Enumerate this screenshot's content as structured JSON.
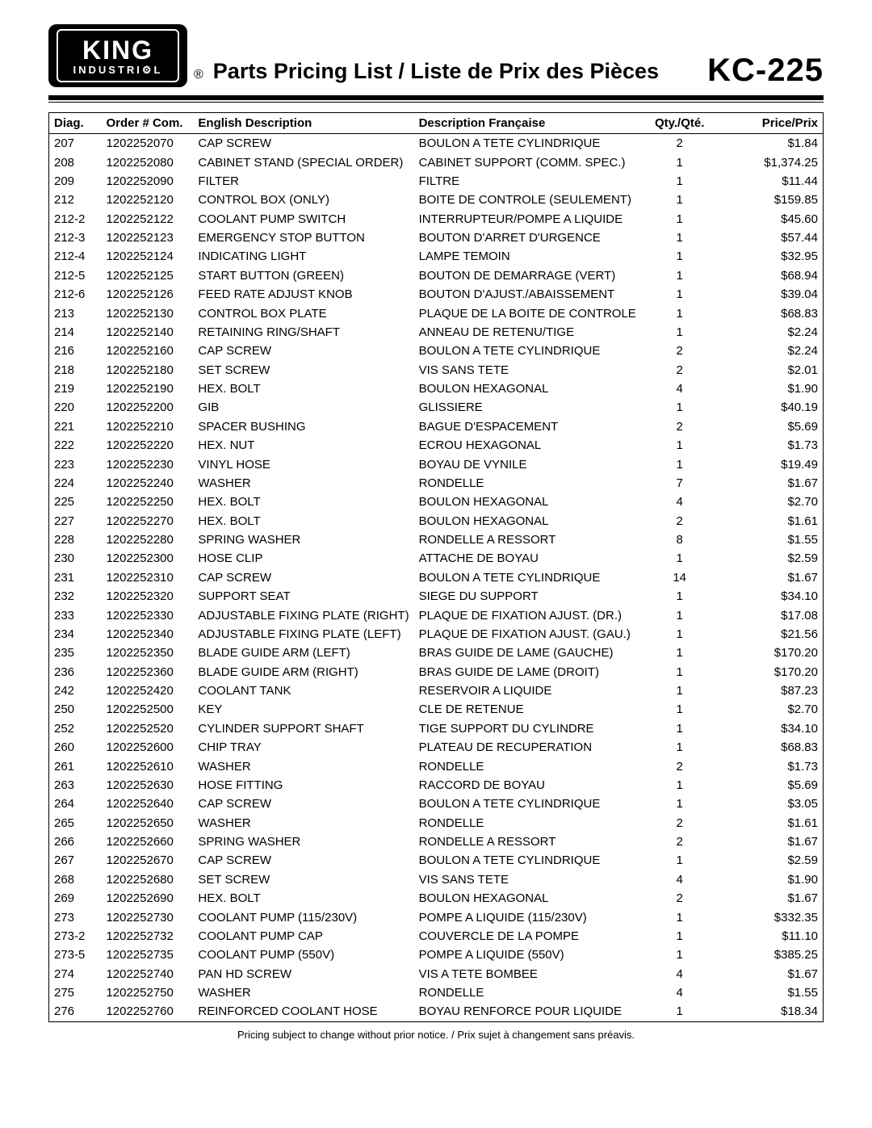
{
  "brand_logo": {
    "line1": "KING",
    "line2": "INDUSTRI",
    "gear": "⚙",
    "line2b": "L"
  },
  "registered": "®",
  "title": "Parts Pricing List / Liste de Prix des Pièces",
  "model": "KC-225",
  "columns": {
    "diag": "Diag.",
    "order": "Order # Com.",
    "en": "English Description",
    "fr": "Description Française",
    "qty": "Qty./Qté.",
    "price": "Price/Prix"
  },
  "rows": [
    {
      "diag": "207",
      "order": "1202252070",
      "en": "CAP SCREW",
      "fr": "BOULON A TETE CYLINDRIQUE",
      "qty": "2",
      "price": "$1.84"
    },
    {
      "diag": "208",
      "order": "1202252080",
      "en": "CABINET STAND (SPECIAL ORDER)",
      "fr": "CABINET SUPPORT (COMM. SPEC.)",
      "qty": "1",
      "price": "$1,374.25"
    },
    {
      "diag": "209",
      "order": "1202252090",
      "en": "FILTER",
      "fr": "FILTRE",
      "qty": "1",
      "price": "$11.44"
    },
    {
      "diag": "212",
      "order": "1202252120",
      "en": "CONTROL BOX (ONLY)",
      "fr": "BOITE DE CONTROLE (SEULEMENT)",
      "qty": "1",
      "price": "$159.85"
    },
    {
      "diag": "212-2",
      "order": "1202252122",
      "en": "COOLANT PUMP SWITCH",
      "fr": "INTERRUPTEUR/POMPE A LIQUIDE",
      "qty": "1",
      "price": "$45.60"
    },
    {
      "diag": "212-3",
      "order": "1202252123",
      "en": "EMERGENCY STOP BUTTON",
      "fr": "BOUTON D'ARRET D'URGENCE",
      "qty": "1",
      "price": "$57.44"
    },
    {
      "diag": "212-4",
      "order": "1202252124",
      "en": "INDICATING LIGHT",
      "fr": "LAMPE TEMOIN",
      "qty": "1",
      "price": "$32.95"
    },
    {
      "diag": "212-5",
      "order": "1202252125",
      "en": "START BUTTON (GREEN)",
      "fr": "BOUTON DE DEMARRAGE (VERT)",
      "qty": "1",
      "price": "$68.94"
    },
    {
      "diag": "212-6",
      "order": "1202252126",
      "en": "FEED RATE ADJUST KNOB",
      "fr": "BOUTON D'AJUST./ABAISSEMENT",
      "qty": "1",
      "price": "$39.04"
    },
    {
      "diag": "213",
      "order": "1202252130",
      "en": "CONTROL BOX PLATE",
      "fr": "PLAQUE DE LA BOITE DE CONTROLE",
      "qty": "1",
      "price": "$68.83"
    },
    {
      "diag": "214",
      "order": "1202252140",
      "en": "RETAINING RING/SHAFT",
      "fr": "ANNEAU DE RETENU/TIGE",
      "qty": "1",
      "price": "$2.24"
    },
    {
      "diag": "216",
      "order": "1202252160",
      "en": "CAP SCREW",
      "fr": "BOULON A TETE CYLINDRIQUE",
      "qty": "2",
      "price": "$2.24"
    },
    {
      "diag": "218",
      "order": "1202252180",
      "en": "SET SCREW",
      "fr": "VIS SANS TETE",
      "qty": "2",
      "price": "$2.01"
    },
    {
      "diag": "219",
      "order": "1202252190",
      "en": "HEX. BOLT",
      "fr": "BOULON HEXAGONAL",
      "qty": "4",
      "price": "$1.90"
    },
    {
      "diag": "220",
      "order": "1202252200",
      "en": "GIB",
      "fr": "GLISSIERE",
      "qty": "1",
      "price": "$40.19"
    },
    {
      "diag": "221",
      "order": "1202252210",
      "en": "SPACER BUSHING",
      "fr": "BAGUE D'ESPACEMENT",
      "qty": "2",
      "price": "$5.69"
    },
    {
      "diag": "222",
      "order": "1202252220",
      "en": "HEX. NUT",
      "fr": "ECROU HEXAGONAL",
      "qty": "1",
      "price": "$1.73"
    },
    {
      "diag": "223",
      "order": "1202252230",
      "en": "VINYL HOSE",
      "fr": "BOYAU DE VYNILE",
      "qty": "1",
      "price": "$19.49"
    },
    {
      "diag": "224",
      "order": "1202252240",
      "en": "WASHER",
      "fr": "RONDELLE",
      "qty": "7",
      "price": "$1.67"
    },
    {
      "diag": "225",
      "order": "1202252250",
      "en": "HEX. BOLT",
      "fr": "BOULON HEXAGONAL",
      "qty": "4",
      "price": "$2.70"
    },
    {
      "diag": "227",
      "order": "1202252270",
      "en": "HEX. BOLT",
      "fr": "BOULON HEXAGONAL",
      "qty": "2",
      "price": "$1.61"
    },
    {
      "diag": "228",
      "order": "1202252280",
      "en": "SPRING WASHER",
      "fr": "RONDELLE A RESSORT",
      "qty": "8",
      "price": "$1.55"
    },
    {
      "diag": "230",
      "order": "1202252300",
      "en": "HOSE CLIP",
      "fr": "ATTACHE DE BOYAU",
      "qty": "1",
      "price": "$2.59"
    },
    {
      "diag": "231",
      "order": "1202252310",
      "en": "CAP SCREW",
      "fr": "BOULON A TETE CYLINDRIQUE",
      "qty": "14",
      "price": "$1.67"
    },
    {
      "diag": "232",
      "order": "1202252320",
      "en": "SUPPORT SEAT",
      "fr": "SIEGE DU SUPPORT",
      "qty": "1",
      "price": "$34.10"
    },
    {
      "diag": "233",
      "order": "1202252330",
      "en": "ADJUSTABLE FIXING PLATE (RIGHT)",
      "fr": "PLAQUE DE FIXATION AJUST. (DR.)",
      "qty": "1",
      "price": "$17.08"
    },
    {
      "diag": "234",
      "order": "1202252340",
      "en": "ADJUSTABLE FIXING PLATE (LEFT)",
      "fr": "PLAQUE DE FIXATION AJUST. (GAU.)",
      "qty": "1",
      "price": "$21.56"
    },
    {
      "diag": "235",
      "order": "1202252350",
      "en": "BLADE GUIDE ARM (LEFT)",
      "fr": "BRAS GUIDE DE LAME (GAUCHE)",
      "qty": "1",
      "price": "$170.20"
    },
    {
      "diag": "236",
      "order": "1202252360",
      "en": "BLADE GUIDE ARM (RIGHT)",
      "fr": "BRAS GUIDE DE LAME (DROIT)",
      "qty": "1",
      "price": "$170.20"
    },
    {
      "diag": "242",
      "order": "1202252420",
      "en": "COOLANT TANK",
      "fr": "RESERVOIR A LIQUIDE",
      "qty": "1",
      "price": "$87.23"
    },
    {
      "diag": "250",
      "order": "1202252500",
      "en": "KEY",
      "fr": "CLE DE RETENUE",
      "qty": "1",
      "price": "$2.70"
    },
    {
      "diag": "252",
      "order": "1202252520",
      "en": "CYLINDER SUPPORT SHAFT",
      "fr": "TIGE SUPPORT DU CYLINDRE",
      "qty": "1",
      "price": "$34.10"
    },
    {
      "diag": "260",
      "order": "1202252600",
      "en": "CHIP TRAY",
      "fr": "PLATEAU DE RECUPERATION",
      "qty": "1",
      "price": "$68.83"
    },
    {
      "diag": "261",
      "order": "1202252610",
      "en": "WASHER",
      "fr": "RONDELLE",
      "qty": "2",
      "price": "$1.73"
    },
    {
      "diag": "263",
      "order": "1202252630",
      "en": "HOSE FITTING",
      "fr": "RACCORD DE BOYAU",
      "qty": "1",
      "price": "$5.69"
    },
    {
      "diag": "264",
      "order": "1202252640",
      "en": "CAP SCREW",
      "fr": "BOULON A TETE CYLINDRIQUE",
      "qty": "1",
      "price": "$3.05"
    },
    {
      "diag": "265",
      "order": "1202252650",
      "en": "WASHER",
      "fr": "RONDELLE",
      "qty": "2",
      "price": "$1.61"
    },
    {
      "diag": "266",
      "order": "1202252660",
      "en": "SPRING WASHER",
      "fr": "RONDELLE A RESSORT",
      "qty": "2",
      "price": "$1.67"
    },
    {
      "diag": "267",
      "order": "1202252670",
      "en": "CAP SCREW",
      "fr": "BOULON A TETE CYLINDRIQUE",
      "qty": "1",
      "price": "$2.59"
    },
    {
      "diag": "268",
      "order": "1202252680",
      "en": "SET SCREW",
      "fr": "VIS SANS TETE",
      "qty": "4",
      "price": "$1.90"
    },
    {
      "diag": "269",
      "order": "1202252690",
      "en": "HEX. BOLT",
      "fr": "BOULON HEXAGONAL",
      "qty": "2",
      "price": "$1.67"
    },
    {
      "diag": "273",
      "order": "1202252730",
      "en": "COOLANT PUMP (115/230V)",
      "fr": "POMPE A LIQUIDE (115/230V)",
      "qty": "1",
      "price": "$332.35"
    },
    {
      "diag": "273-2",
      "order": "1202252732",
      "en": "COOLANT PUMP CAP",
      "fr": "COUVERCLE DE LA POMPE",
      "qty": "1",
      "price": "$11.10"
    },
    {
      "diag": "273-5",
      "order": "1202252735",
      "en": "COOLANT PUMP (550V)",
      "fr": "POMPE A LIQUIDE (550V)",
      "qty": "1",
      "price": "$385.25"
    },
    {
      "diag": "274",
      "order": "1202252740",
      "en": "PAN HD SCREW",
      "fr": "VIS A TETE BOMBEE",
      "qty": "4",
      "price": "$1.67"
    },
    {
      "diag": "275",
      "order": "1202252750",
      "en": "WASHER",
      "fr": "RONDELLE",
      "qty": "4",
      "price": "$1.55"
    },
    {
      "diag": "276",
      "order": "1202252760",
      "en": "REINFORCED COOLANT HOSE",
      "fr": "BOYAU RENFORCE POUR LIQUIDE",
      "qty": "1",
      "price": "$18.34"
    }
  ],
  "footnote": "Pricing subject to change without prior notice. / Prix sujet à changement sans préavis."
}
